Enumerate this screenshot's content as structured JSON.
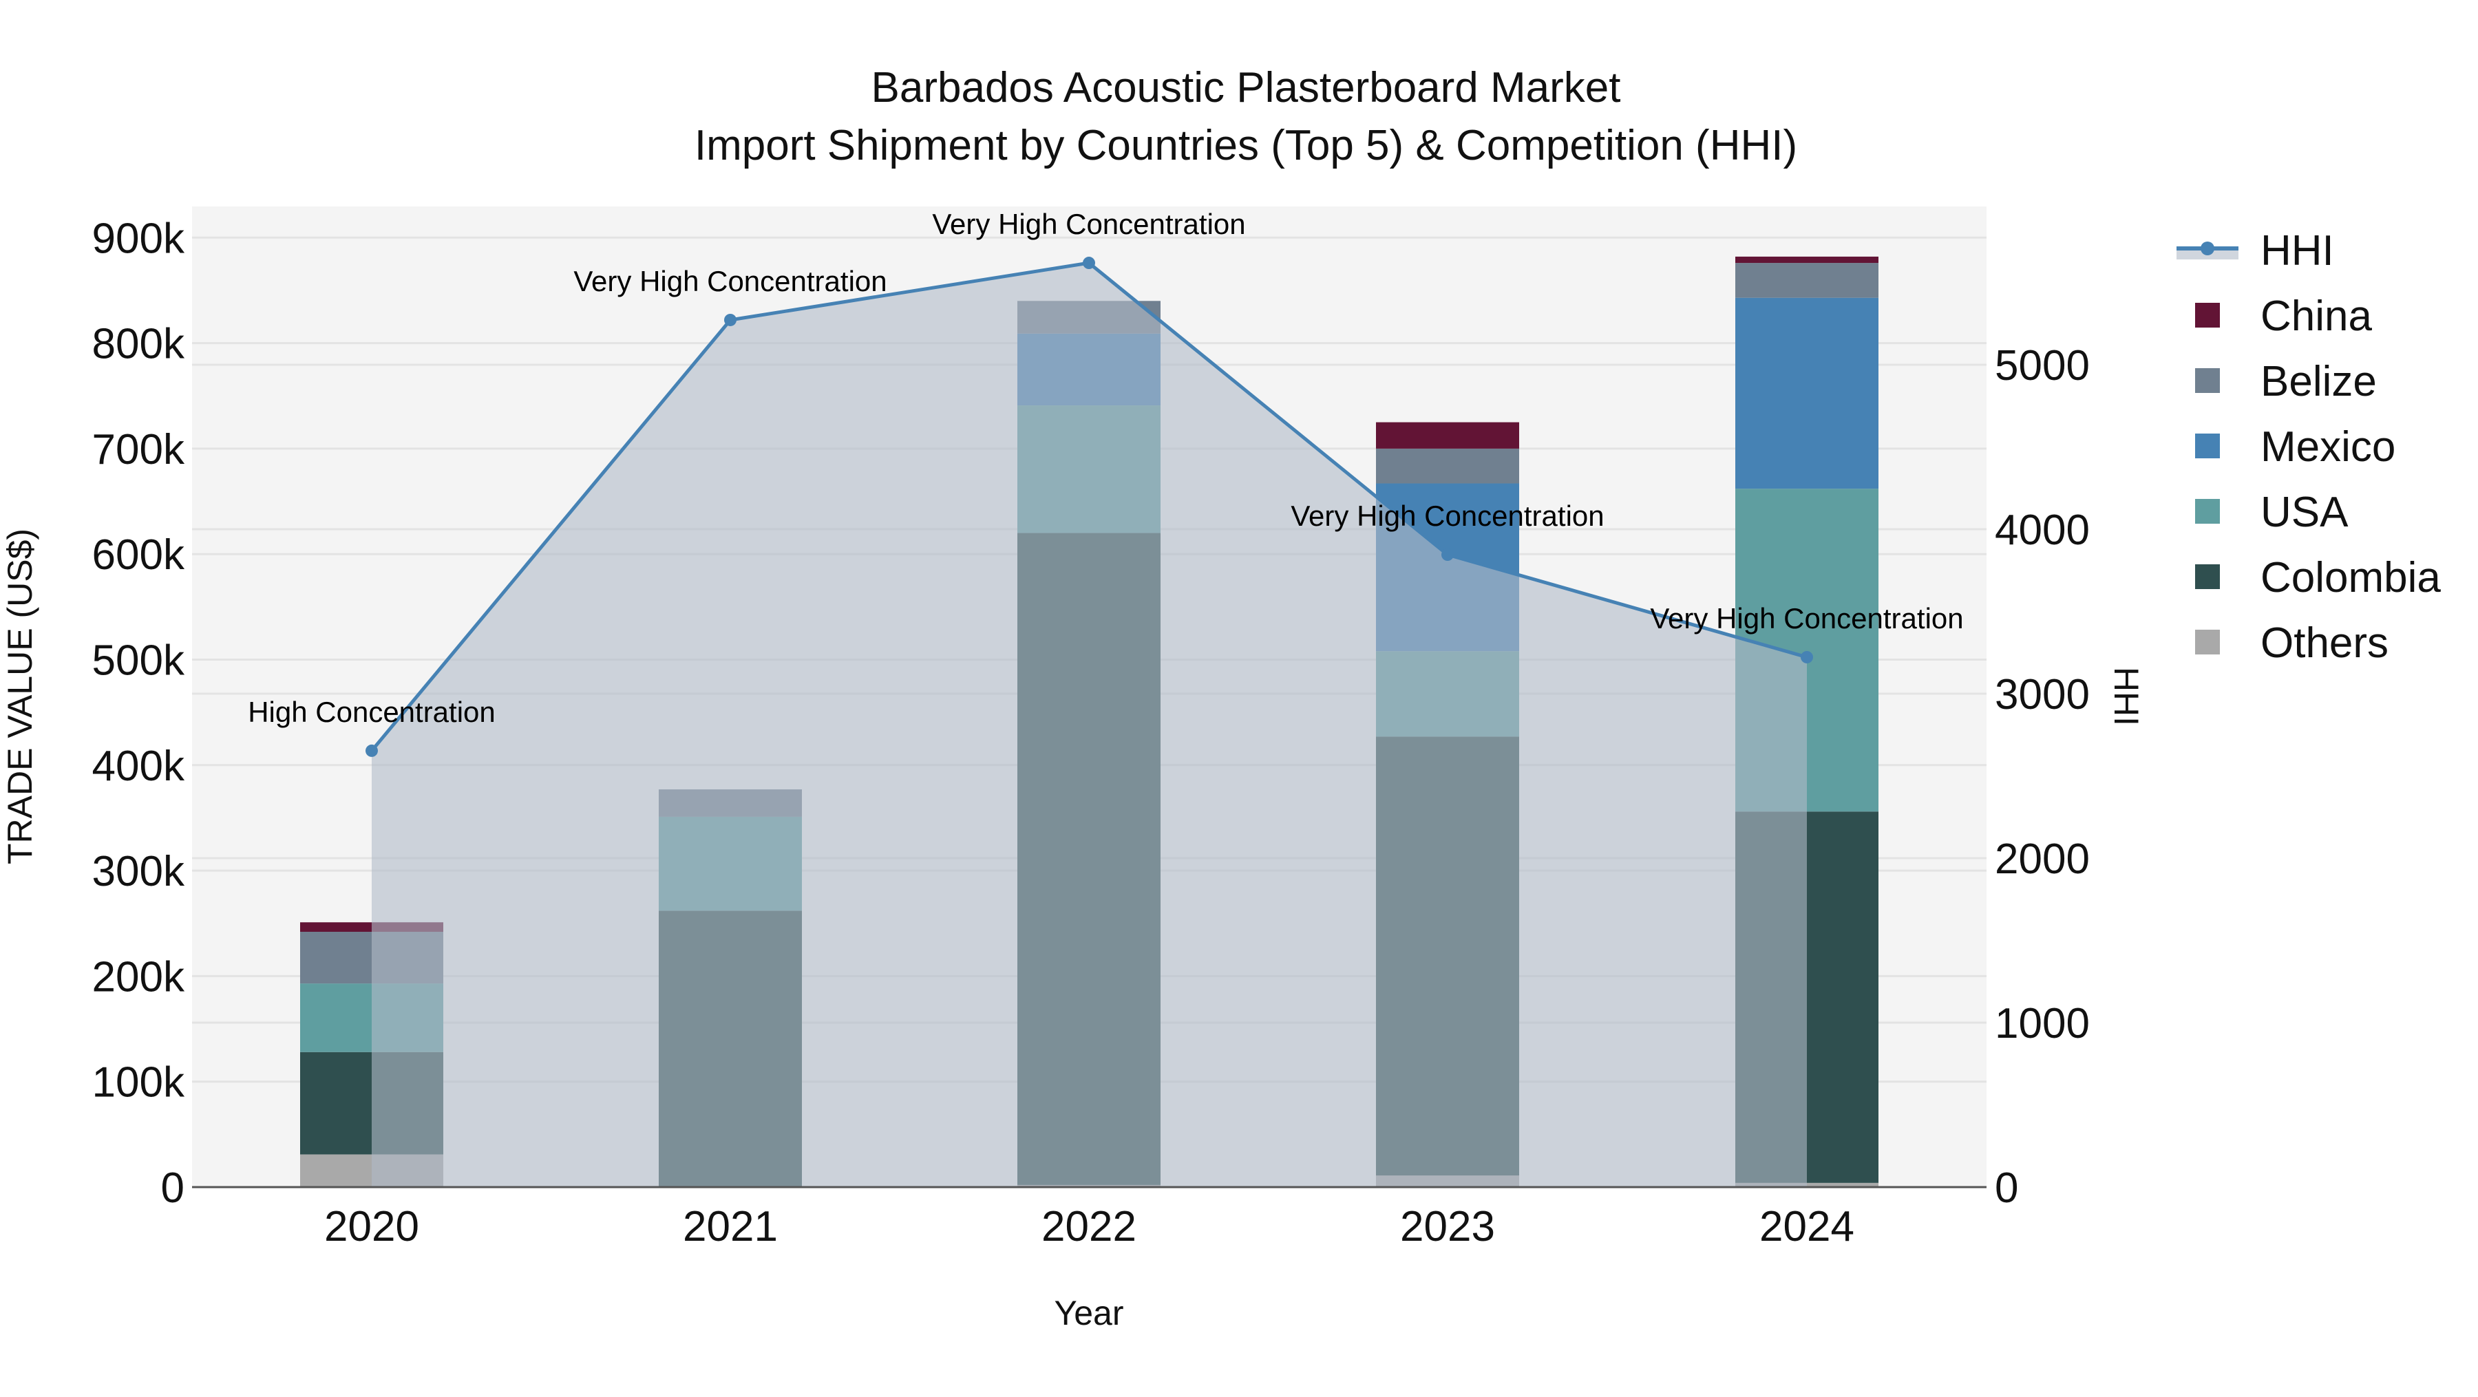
{
  "title": {
    "line1": "Barbados Acoustic Plasterboard Market",
    "line2": "Import Shipment by Countries (Top 5) & Competition (HHI)"
  },
  "axes": {
    "x_title": "Year",
    "y_left_title": "TRADE VALUE (US$)",
    "y_right_title": "HHI",
    "y_left_ticks": [
      "0",
      "100k",
      "200k",
      "300k",
      "400k",
      "500k",
      "600k",
      "700k",
      "800k",
      "900k"
    ],
    "y_right_ticks": [
      "0",
      "1000",
      "2000",
      "3000",
      "4000",
      "5000"
    ]
  },
  "legend": [
    {
      "label": "HHI",
      "type": "line",
      "color": "#4682b4"
    },
    {
      "label": "China",
      "type": "box",
      "color": "#621435"
    },
    {
      "label": "Belize",
      "type": "box",
      "color": "#708090"
    },
    {
      "label": "Mexico",
      "type": "box",
      "color": "#4682b4"
    },
    {
      "label": "USA",
      "type": "box",
      "color": "#5f9ea0"
    },
    {
      "label": "Colombia",
      "type": "box",
      "color": "#2f4f4f"
    },
    {
      "label": "Others",
      "type": "box",
      "color": "#a9a9a9"
    }
  ],
  "colors": {
    "plot_bg": "#f4f4f4",
    "grid": "#e3e3e3",
    "hhi_line": "#4682b4",
    "hhi_fill": "rgba(176,186,200,0.6)",
    "axis_line": "#555555"
  },
  "chart_data": {
    "type": "bar",
    "stacked": true,
    "title": "Barbados Acoustic Plasterboard Market — Import Shipment by Countries (Top 5) & Competition (HHI)",
    "xlabel": "Year",
    "ylabel": "TRADE VALUE (US$)",
    "y2label": "HHI",
    "ylim": [
      0,
      930000
    ],
    "y2lim": [
      0,
      5970
    ],
    "categories": [
      "2020",
      "2021",
      "2022",
      "2023",
      "2024"
    ],
    "series": [
      {
        "name": "Others",
        "color": "#a9a9a9",
        "values": [
          31000,
          0,
          2000,
          11000,
          4000
        ]
      },
      {
        "name": "Colombia",
        "color": "#2f4f4f",
        "values": [
          97000,
          262000,
          618000,
          416000,
          352000
        ]
      },
      {
        "name": "USA",
        "color": "#5f9ea0",
        "values": [
          65000,
          89000,
          121000,
          81000,
          306000
        ]
      },
      {
        "name": "Mexico",
        "color": "#4682b4",
        "values": [
          0,
          0,
          68000,
          159000,
          181000
        ]
      },
      {
        "name": "Belize",
        "color": "#708090",
        "values": [
          49000,
          26000,
          31000,
          33000,
          33000
        ]
      },
      {
        "name": "China",
        "color": "#621435",
        "values": [
          9000,
          0,
          0,
          25000,
          6000
        ]
      }
    ],
    "line_series": {
      "name": "HHI",
      "axis": "right",
      "color": "#4682b4",
      "values": [
        2653,
        5272,
        5619,
        3845,
        3222
      ],
      "annotations": [
        "High Concentration",
        "Very High Concentration",
        "Very High Concentration",
        "Very High Concentration",
        "Very High Concentration"
      ]
    },
    "grid": true,
    "legend_position": "right"
  }
}
